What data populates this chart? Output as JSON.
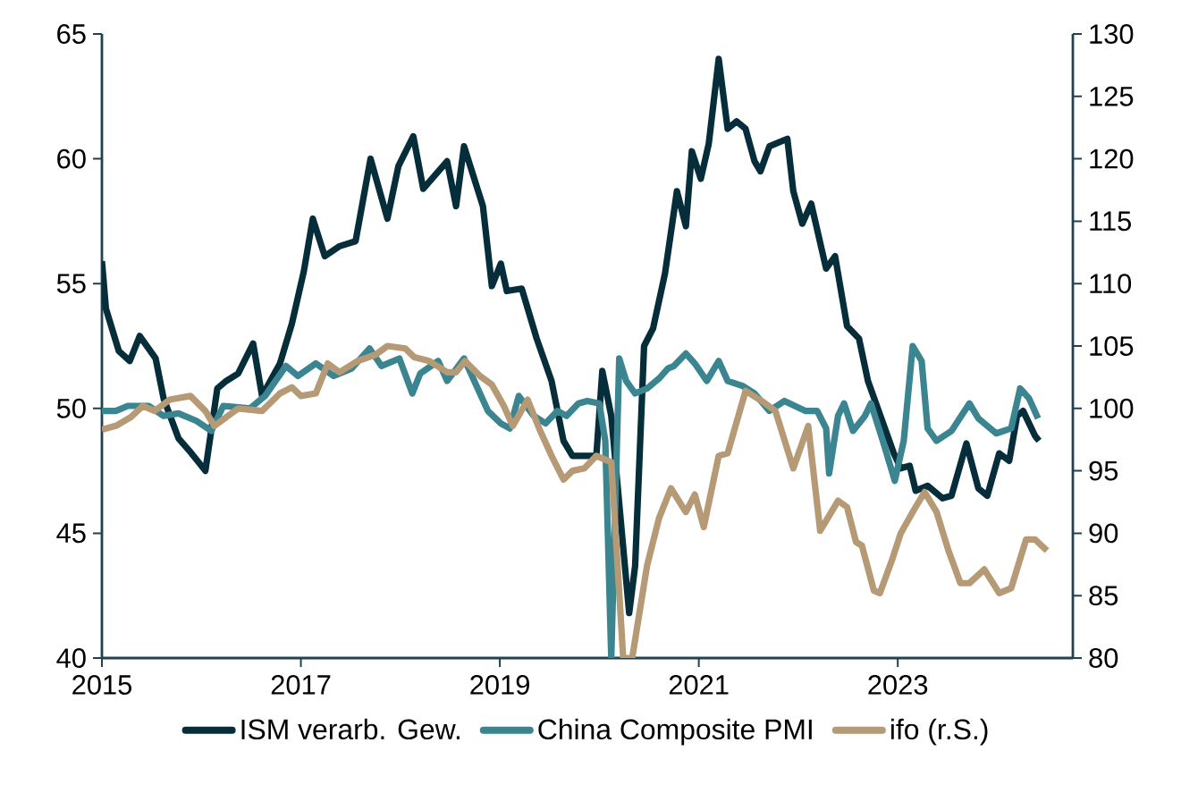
{
  "chart_data": {
    "type": "line",
    "marker": "none",
    "line_style": "solid",
    "legend": "bottom",
    "xlim": [
      2015,
      2024.76
    ],
    "xticks": [
      2015,
      2017,
      2019,
      2021,
      2023
    ],
    "ylim": [
      40,
      65
    ],
    "yticks": [
      40,
      45,
      50,
      55,
      60,
      65
    ],
    "y2lim": [
      80,
      130
    ],
    "y2ticks": [
      80,
      85,
      90,
      95,
      100,
      105,
      110,
      115,
      120,
      125,
      130
    ],
    "series": [
      {
        "name": "ISM verarb. Gew.",
        "color": "#062d3a",
        "x": [
          2015.0,
          2015.04,
          2015.17,
          2015.28,
          2015.38,
          2015.54,
          2015.62,
          2015.77,
          2015.88,
          2016.04,
          2016.16,
          2016.25,
          2016.37,
          2016.52,
          2016.61,
          2016.79,
          2016.91,
          2017.03,
          2017.12,
          2017.24,
          2017.39,
          2017.55,
          2017.7,
          2017.87,
          2017.98,
          2018.13,
          2018.23,
          2018.47,
          2018.56,
          2018.64,
          2018.83,
          2018.92,
          2019.01,
          2019.07,
          2019.22,
          2019.37,
          2019.52,
          2019.64,
          2019.73,
          2019.97,
          2020.03,
          2020.12,
          2020.3,
          2020.36,
          2020.45,
          2020.54,
          2020.66,
          2020.78,
          2020.87,
          2020.93,
          2021.02,
          2021.1,
          2021.2,
          2021.29,
          2021.38,
          2021.47,
          2021.56,
          2021.62,
          2021.71,
          2021.89,
          2021.95,
          2022.04,
          2022.13,
          2022.28,
          2022.37,
          2022.49,
          2022.61,
          2022.7,
          2022.79,
          2022.96,
          2023.03,
          2023.12,
          2023.18,
          2023.3,
          2023.45,
          2023.54,
          2023.69,
          2023.81,
          2023.9,
          2024.02,
          2024.12,
          2024.2,
          2024.26,
          2024.38,
          2024.42
        ],
        "values": [
          55.9,
          54.0,
          52.3,
          51.9,
          52.9,
          52.0,
          50.4,
          48.8,
          48.3,
          47.5,
          50.8,
          51.1,
          51.4,
          52.6,
          50.5,
          51.8,
          53.4,
          55.5,
          57.6,
          56.1,
          56.5,
          56.7,
          60.0,
          57.6,
          59.7,
          60.9,
          58.8,
          59.9,
          58.1,
          60.5,
          58.1,
          54.9,
          55.8,
          54.7,
          54.8,
          52.8,
          51.1,
          48.7,
          48.1,
          48.1,
          51.5,
          49.7,
          41.8,
          43.7,
          52.5,
          53.2,
          55.4,
          58.7,
          57.3,
          60.3,
          59.2,
          60.6,
          64.0,
          61.2,
          61.5,
          61.2,
          59.9,
          59.5,
          60.5,
          60.8,
          58.7,
          57.4,
          58.2,
          55.6,
          56.1,
          53.3,
          52.8,
          51.1,
          50.1,
          48.2,
          47.6,
          47.7,
          46.7,
          46.9,
          46.4,
          46.5,
          48.6,
          46.8,
          46.5,
          48.2,
          47.9,
          49.7,
          49.9,
          48.9,
          48.7
        ]
      },
      {
        "name": "China Composite PMI",
        "color": "#3a858f",
        "x": [
          2015.0,
          2015.14,
          2015.26,
          2015.47,
          2015.62,
          2015.77,
          2015.95,
          2016.1,
          2016.22,
          2016.49,
          2016.64,
          2016.85,
          2016.97,
          2017.15,
          2017.33,
          2017.51,
          2017.69,
          2017.81,
          2017.99,
          2018.12,
          2018.2,
          2018.38,
          2018.47,
          2018.64,
          2018.88,
          2019.01,
          2019.1,
          2019.19,
          2019.34,
          2019.46,
          2019.58,
          2019.67,
          2019.79,
          2019.88,
          2020.0,
          2020.06,
          2020.12,
          2020.2,
          2020.27,
          2020.36,
          2020.48,
          2020.6,
          2020.69,
          2020.75,
          2020.87,
          2020.96,
          2021.08,
          2021.2,
          2021.29,
          2021.44,
          2021.56,
          2021.71,
          2021.86,
          2022.07,
          2022.19,
          2022.28,
          2022.31,
          2022.4,
          2022.46,
          2022.55,
          2022.67,
          2022.73,
          2022.85,
          2022.97,
          2023.06,
          2023.15,
          2023.24,
          2023.3,
          2023.39,
          2023.54,
          2023.72,
          2023.81,
          2023.99,
          2024.14,
          2024.23,
          2024.32,
          2024.41
        ],
        "values": [
          49.9,
          49.9,
          50.1,
          50.1,
          49.7,
          49.8,
          49.5,
          49.1,
          50.1,
          50.0,
          50.5,
          51.7,
          51.3,
          51.8,
          51.3,
          51.6,
          52.4,
          51.7,
          52.0,
          50.6,
          51.4,
          51.9,
          51.1,
          52.0,
          49.9,
          49.4,
          49.2,
          50.5,
          49.7,
          49.4,
          49.9,
          49.7,
          50.2,
          50.3,
          50.2,
          48.7,
          40,
          52.0,
          51.1,
          50.6,
          50.8,
          51.2,
          51.6,
          51.7,
          52.2,
          51.8,
          51.1,
          51.9,
          51.1,
          50.9,
          50.6,
          49.9,
          50.3,
          49.9,
          49.9,
          49.2,
          47.4,
          49.7,
          50.2,
          49.1,
          49.7,
          50.2,
          48.7,
          47.1,
          48.7,
          52.5,
          51.9,
          49.2,
          48.7,
          49.1,
          50.2,
          49.6,
          49.0,
          49.2,
          50.8,
          50.4,
          49.6
        ]
      },
      {
        "name": "ifo (r.S.)",
        "color": "#b59a75",
        "axis": "y2",
        "x": [
          2015.0,
          2015.14,
          2015.29,
          2015.41,
          2015.53,
          2015.68,
          2015.89,
          2016.04,
          2016.13,
          2016.25,
          2016.37,
          2016.61,
          2016.79,
          2016.91,
          2017.0,
          2017.15,
          2017.27,
          2017.39,
          2017.57,
          2017.75,
          2017.87,
          2018.05,
          2018.14,
          2018.29,
          2018.47,
          2018.56,
          2018.65,
          2018.8,
          2018.92,
          2019.04,
          2019.13,
          2019.28,
          2019.4,
          2019.52,
          2019.64,
          2019.73,
          2019.85,
          2019.97,
          2020.12,
          2020.24,
          2020.33,
          2020.48,
          2020.6,
          2020.72,
          2020.87,
          2020.96,
          2021.05,
          2021.2,
          2021.29,
          2021.47,
          2021.65,
          2021.77,
          2021.95,
          2022.1,
          2022.22,
          2022.31,
          2022.4,
          2022.49,
          2022.58,
          2022.64,
          2022.76,
          2022.82,
          2022.94,
          2023.03,
          2023.15,
          2023.27,
          2023.39,
          2023.51,
          2023.63,
          2023.72,
          2023.87,
          2024.02,
          2024.14,
          2024.29,
          2024.38,
          2024.5
        ],
        "values": [
          98.3,
          98.6,
          99.3,
          100.2,
          99.8,
          100.7,
          101.0,
          99.8,
          98.6,
          99.3,
          100.0,
          99.8,
          101.2,
          101.7,
          101.0,
          101.2,
          103.6,
          102.9,
          103.8,
          104.3,
          105.0,
          104.8,
          104.1,
          103.8,
          102.9,
          102.9,
          103.8,
          102.6,
          101.9,
          100.2,
          98.6,
          100.7,
          98.3,
          96.2,
          94.3,
          95.0,
          95.2,
          96.2,
          95.7,
          80,
          80,
          87.4,
          91.2,
          93.6,
          91.7,
          93.1,
          90.5,
          96.2,
          96.4,
          101.4,
          100.5,
          99.8,
          95.2,
          98.6,
          90.2,
          91.4,
          92.6,
          92.1,
          89.3,
          89.0,
          85.4,
          85.2,
          87.8,
          90.0,
          91.7,
          93.3,
          91.7,
          88.6,
          86.0,
          86.0,
          87.1,
          85.2,
          85.6,
          89.5,
          89.5,
          88.6
        ]
      }
    ]
  }
}
